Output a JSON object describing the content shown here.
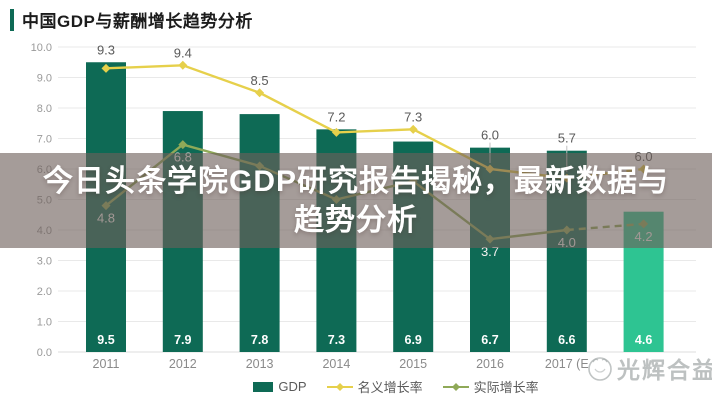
{
  "header": {
    "title": "中国GDP与薪酬增长趋势分析"
  },
  "overlay": {
    "line1": "今日头条学院GDP研究报告揭秘，最新数据与",
    "line2": "趋势分析"
  },
  "watermark": {
    "text": "光辉合益"
  },
  "colors": {
    "accent_green": "#0e6a55",
    "bar_highlight_teal": "#2ec492",
    "nominal_line_yellow": "#e6d04b",
    "real_line_green": "#8fa958",
    "overlay_band": "rgba(110,95,90,0.62)",
    "grid_line": "#e9e9e9"
  },
  "chart_data": {
    "type": "combo-bar-line",
    "title": "中国GDP与薪酬增长趋势分析",
    "categories": [
      "2011",
      "2012",
      "2013",
      "2014",
      "2015",
      "2016",
      "2017 (E",
      ""
    ],
    "ylim": [
      0,
      10
    ],
    "y_tick_step": 1,
    "y_tick_labels": [
      "0.0",
      "1.0",
      "2.0",
      "3.0",
      "4.0",
      "5.0",
      "6.0",
      "7.0",
      "8.0",
      "9.0",
      "10.0"
    ],
    "grid": true,
    "legend_position": "bottom",
    "bars": {
      "name": "GDP",
      "values": [
        9.5,
        7.9,
        7.8,
        7.3,
        6.9,
        6.7,
        6.6,
        4.6
      ],
      "color": "#0e6a55",
      "highlight_index": 7,
      "highlight_color": "#2ec492"
    },
    "lines": [
      {
        "name": "名义增长率",
        "color": "#e6d04b",
        "label_position": "above",
        "last_segment_dashed": true,
        "values": [
          9.3,
          9.4,
          8.5,
          7.2,
          7.3,
          6.0,
          5.7,
          6.0
        ],
        "labels": [
          "9.3",
          "9.4",
          "8.5",
          "7.2",
          "7.3",
          "6.0",
          "5.7",
          "6.0"
        ]
      },
      {
        "name": "实际增长率",
        "color": "#8fa958",
        "label_position": "below",
        "last_segment_dashed": true,
        "values": [
          4.8,
          6.8,
          6.1,
          5.0,
          5.6,
          3.7,
          4.0,
          4.2
        ],
        "labels": [
          "4.8",
          "6.8",
          "",
          "",
          "",
          "3.7",
          "4.0",
          "4.2"
        ],
        "estimated_value_indices": [
          2,
          3,
          4
        ]
      }
    ],
    "legend": [
      {
        "label": "GDP",
        "swatch": "bar",
        "color": "#0e6a55"
      },
      {
        "label": "名义增长率",
        "swatch": "line",
        "color": "#e6d04b"
      },
      {
        "label": "实际增长率",
        "swatch": "line",
        "color": "#8fa958"
      }
    ]
  }
}
